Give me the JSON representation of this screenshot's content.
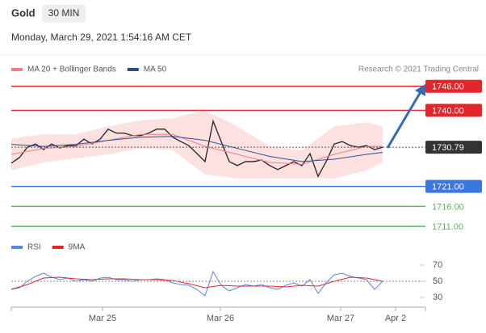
{
  "header": {
    "symbol": "Gold",
    "timeframe": "30 MIN",
    "timestamp": "Monday, March 29, 2021 1:54:16 AM CET",
    "credit": "Research © 2021 Trading Central"
  },
  "chart_data": [
    {
      "type": "line",
      "ylim": [
        1708,
        1750
      ],
      "xlim": [
        0,
        100
      ],
      "series": [
        {
          "name": "MA 20 + Bollinger Bands",
          "color": "#f07f7f",
          "band_color": "#fcd9d9",
          "x": [
            0,
            8,
            16,
            24,
            32,
            40,
            48,
            56,
            64,
            72,
            80,
            88,
            92
          ],
          "values": [
            1729,
            1730.5,
            1731,
            1732.5,
            1734,
            1734,
            1731,
            1729,
            1727,
            1726.5,
            1729,
            1731,
            1731
          ],
          "upper": [
            1733,
            1734,
            1734,
            1736,
            1737.5,
            1738,
            1740,
            1736,
            1731,
            1730,
            1736,
            1737,
            1736
          ],
          "lower": [
            1725,
            1727,
            1728,
            1729,
            1730.5,
            1730,
            1724,
            1723,
            1723,
            1723,
            1723,
            1725,
            1727
          ]
        },
        {
          "name": "MA 50",
          "color": "#2e4d8f",
          "x": [
            0,
            8,
            16,
            24,
            32,
            40,
            48,
            56,
            64,
            72,
            80,
            88,
            92
          ],
          "values": [
            1731.5,
            1731,
            1731.5,
            1732.5,
            1733.3,
            1733.5,
            1732.5,
            1730.5,
            1728.5,
            1727.2,
            1727.8,
            1729,
            1729.5
          ]
        }
      ],
      "price": {
        "color": "#222222",
        "x": [
          0,
          2,
          4,
          6,
          8,
          10,
          12,
          14,
          16,
          18,
          20,
          22,
          24,
          26,
          28,
          30,
          32,
          34,
          36,
          38,
          40,
          42,
          44,
          46,
          48,
          50,
          52,
          54,
          56,
          58,
          60,
          62,
          64,
          66,
          68,
          70,
          72,
          74,
          76,
          78,
          80,
          82,
          84,
          86,
          88,
          90,
          92
        ],
        "values": [
          1726.8,
          1728.2,
          1730.8,
          1731.6,
          1730.2,
          1731.6,
          1730.6,
          1731.2,
          1731.2,
          1732.8,
          1731.6,
          1732.8,
          1735.3,
          1734.3,
          1734.3,
          1733.7,
          1733.7,
          1734.3,
          1735.3,
          1735.3,
          1733.3,
          1732.2,
          1731.2,
          1729.2,
          1727.2,
          1737.3,
          1732.2,
          1727.2,
          1726.2,
          1727.2,
          1727.2,
          1727.6,
          1726.2,
          1725.2,
          1726.2,
          1727.2,
          1726.2,
          1729.2,
          1723.5,
          1727.2,
          1731.6,
          1732.2,
          1731.2,
          1730.8,
          1731.2,
          1730.2,
          1730.79
        ]
      },
      "levels": [
        {
          "value": 1746,
          "label": "1746.00",
          "color": "#e3262b",
          "boxed": true
        },
        {
          "value": 1740,
          "label": "1740.00",
          "color": "#e3262b",
          "boxed": true
        },
        {
          "value": 1730.79,
          "color": "#333333",
          "boxed": true,
          "dotted": true
        },
        {
          "value": 1721,
          "label": "1721.00",
          "color": "#3a78e0",
          "boxed": true
        },
        {
          "value": 1716,
          "label": "1716.00",
          "color": "#5cb85c",
          "boxed": false
        },
        {
          "value": 1711,
          "label": "1711.00",
          "color": "#5cb85c",
          "boxed": false
        }
      ]
    },
    {
      "type": "line",
      "ylim": [
        20,
        80
      ],
      "xlim": [
        0,
        100
      ],
      "yticks": [
        30,
        50,
        70
      ],
      "dotted_line": 50,
      "xticks": [
        {
          "value": 22.6,
          "label": "Mar 25"
        },
        {
          "value": 51.8,
          "label": "Mar 26"
        },
        {
          "value": 81.6,
          "label": "Mar 27"
        },
        {
          "value": 95.2,
          "label": "Apr 2"
        }
      ],
      "series": [
        {
          "name": "RSI",
          "color": "#5b86e5",
          "x": [
            0,
            2,
            4,
            6,
            8,
            10,
            12,
            14,
            16,
            18,
            20,
            22,
            24,
            26,
            28,
            30,
            32,
            34,
            36,
            38,
            40,
            42,
            44,
            46,
            48,
            50,
            52,
            54,
            56,
            58,
            60,
            62,
            64,
            66,
            68,
            70,
            72,
            74,
            76,
            78,
            80,
            82,
            84,
            86,
            88,
            90,
            92
          ],
          "values": [
            40,
            42,
            50,
            56,
            60,
            55,
            52,
            54,
            50,
            52,
            50,
            54,
            55,
            52,
            52,
            50,
            52,
            52,
            53,
            52,
            48,
            46,
            45,
            40,
            32,
            62,
            45,
            38,
            42,
            46,
            44,
            46,
            42,
            40,
            45,
            48,
            44,
            52,
            35,
            48,
            58,
            60,
            56,
            54,
            52,
            40,
            50
          ]
        },
        {
          "name": "9MA",
          "color": "#e3262b",
          "x": [
            0,
            4,
            8,
            12,
            16,
            20,
            24,
            28,
            32,
            36,
            40,
            44,
            48,
            52,
            56,
            60,
            64,
            68,
            72,
            76,
            80,
            84,
            88,
            92
          ],
          "values": [
            40,
            46,
            54,
            55,
            53,
            52,
            53,
            53,
            52,
            52,
            51,
            47,
            42,
            45,
            44,
            44,
            44,
            43,
            45,
            44,
            50,
            55,
            54,
            50
          ]
        }
      ]
    }
  ]
}
